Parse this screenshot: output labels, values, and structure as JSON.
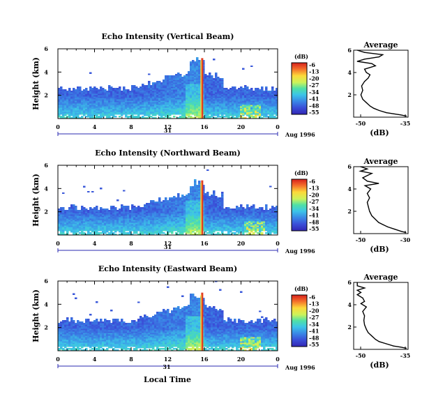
{
  "figure": {
    "xlabel": "Local Time",
    "date_label": "Aug 1996",
    "day_label": "31"
  },
  "chart_data": [
    {
      "type": "heatmap",
      "title": "Echo Intensity (Vertical Beam)",
      "ylabel": "Height (km)",
      "xticks": [
        "0",
        "4",
        "8",
        "12",
        "16",
        "20",
        "0"
      ],
      "xlim": [
        0,
        24
      ],
      "ylim": [
        0,
        6
      ],
      "yticks": [
        "2",
        "4",
        "6"
      ],
      "colorbar_unit": "(dB)",
      "colorbar_ticks": [
        "-6",
        "-13",
        "-20",
        "-27",
        "-34",
        "-41",
        "-48",
        "-55"
      ],
      "features": {
        "echo_top_km": 2.6,
        "storm_peak_hour": 15.5,
        "storm_top_km": 5.0,
        "bright_column_hour": 15.8,
        "late_cluster_hour": 21.0
      },
      "profile": {
        "title": "Average",
        "xlabel": "(dB)",
        "xticks": [
          "-50",
          "-35"
        ],
        "xlim": [
          -50,
          -35
        ],
        "ylim": [
          0,
          6
        ],
        "yticks": [
          "2",
          "4",
          "6"
        ],
        "points": [
          [
            0.1,
            -35.5
          ],
          [
            0.2,
            -37
          ],
          [
            0.3,
            -39
          ],
          [
            0.4,
            -41
          ],
          [
            0.6,
            -43
          ],
          [
            0.8,
            -44.5
          ],
          [
            1.0,
            -45.5
          ],
          [
            1.3,
            -46.5
          ],
          [
            1.6,
            -47.5
          ],
          [
            2.0,
            -48
          ],
          [
            2.4,
            -47.5
          ],
          [
            2.8,
            -47.8
          ],
          [
            3.2,
            -47
          ],
          [
            3.5,
            -46
          ],
          [
            3.8,
            -45.5
          ],
          [
            4.0,
            -46.5
          ],
          [
            4.3,
            -47
          ],
          [
            4.6,
            -44
          ],
          [
            4.8,
            -45
          ],
          [
            5.0,
            -49
          ],
          [
            5.2,
            -47
          ],
          [
            5.4,
            -43
          ],
          [
            5.6,
            -42
          ],
          [
            5.8,
            -47
          ],
          [
            6.0,
            -49
          ]
        ]
      }
    },
    {
      "type": "heatmap",
      "title": "Echo Intensity (Northward Beam)",
      "ylabel": "Height (km)",
      "xticks": [
        "0",
        "4",
        "8",
        "12",
        "16",
        "20",
        "0"
      ],
      "xlim": [
        0,
        24
      ],
      "ylim": [
        0,
        6
      ],
      "yticks": [
        "2",
        "4",
        "6"
      ],
      "colorbar_unit": "(dB)",
      "colorbar_ticks": [
        "-6",
        "-13",
        "-20",
        "-27",
        "-34",
        "-41",
        "-48",
        "-55"
      ],
      "features": {
        "echo_top_km": 2.4,
        "storm_peak_hour": 15.5,
        "storm_top_km": 4.5,
        "bright_column_hour": 15.8,
        "late_cluster_hour": 21.5
      },
      "profile": {
        "title": "Average",
        "xlabel": "(dB)",
        "xticks": [
          "-50",
          "-30"
        ],
        "xlim": [
          -52,
          -28
        ],
        "ylim": [
          0,
          6
        ],
        "yticks": [
          "2",
          "4",
          "6"
        ],
        "points": [
          [
            0.1,
            -29
          ],
          [
            0.2,
            -31
          ],
          [
            0.4,
            -34
          ],
          [
            0.6,
            -37
          ],
          [
            0.8,
            -39
          ],
          [
            1.0,
            -41
          ],
          [
            1.3,
            -42.5
          ],
          [
            1.6,
            -44
          ],
          [
            2.0,
            -45
          ],
          [
            2.4,
            -45.5
          ],
          [
            2.8,
            -46
          ],
          [
            3.2,
            -45
          ],
          [
            3.6,
            -46
          ],
          [
            4.0,
            -44.5
          ],
          [
            4.3,
            -47
          ],
          [
            4.5,
            -41
          ],
          [
            4.7,
            -46
          ],
          [
            5.0,
            -48
          ],
          [
            5.2,
            -46
          ],
          [
            5.4,
            -44
          ],
          [
            5.6,
            -49
          ],
          [
            5.8,
            -46
          ],
          [
            6.0,
            -49
          ]
        ]
      }
    },
    {
      "type": "heatmap",
      "title": "Echo Intensity (Eastward Beam)",
      "ylabel": "Height (km)",
      "xticks": [
        "0",
        "4",
        "8",
        "12",
        "16",
        "20",
        "0"
      ],
      "xlim": [
        0,
        24
      ],
      "ylim": [
        0,
        6
      ],
      "yticks": [
        "2",
        "4",
        "6"
      ],
      "colorbar_unit": "(dB)",
      "colorbar_ticks": [
        "-6",
        "-13",
        "-20",
        "-27",
        "-34",
        "-41",
        "-48",
        "-55"
      ],
      "features": {
        "echo_top_km": 2.6,
        "storm_peak_hour": 15.5,
        "storm_top_km": 4.8,
        "bright_column_hour": 15.8,
        "late_cluster_hour": 21.0
      },
      "profile": {
        "title": "Average",
        "xlabel": "(dB)",
        "xticks": [
          "-50",
          "-35"
        ],
        "xlim": [
          -50,
          -35
        ],
        "ylim": [
          0,
          6
        ],
        "yticks": [
          "2",
          "4",
          "6"
        ],
        "points": [
          [
            0.1,
            -35.5
          ],
          [
            0.2,
            -37
          ],
          [
            0.3,
            -39
          ],
          [
            0.5,
            -41
          ],
          [
            0.7,
            -43
          ],
          [
            0.9,
            -44
          ],
          [
            1.2,
            -45
          ],
          [
            1.5,
            -46
          ],
          [
            1.8,
            -46.5
          ],
          [
            2.2,
            -47
          ],
          [
            2.6,
            -47.2
          ],
          [
            3.0,
            -47
          ],
          [
            3.4,
            -47.5
          ],
          [
            3.8,
            -46.5
          ],
          [
            4.1,
            -48
          ],
          [
            4.3,
            -47
          ],
          [
            4.6,
            -47.5
          ],
          [
            4.9,
            -49
          ],
          [
            5.1,
            -48
          ],
          [
            5.3,
            -49
          ],
          [
            5.5,
            -47
          ],
          [
            5.7,
            -49
          ],
          [
            6.0,
            -49
          ]
        ]
      }
    }
  ]
}
